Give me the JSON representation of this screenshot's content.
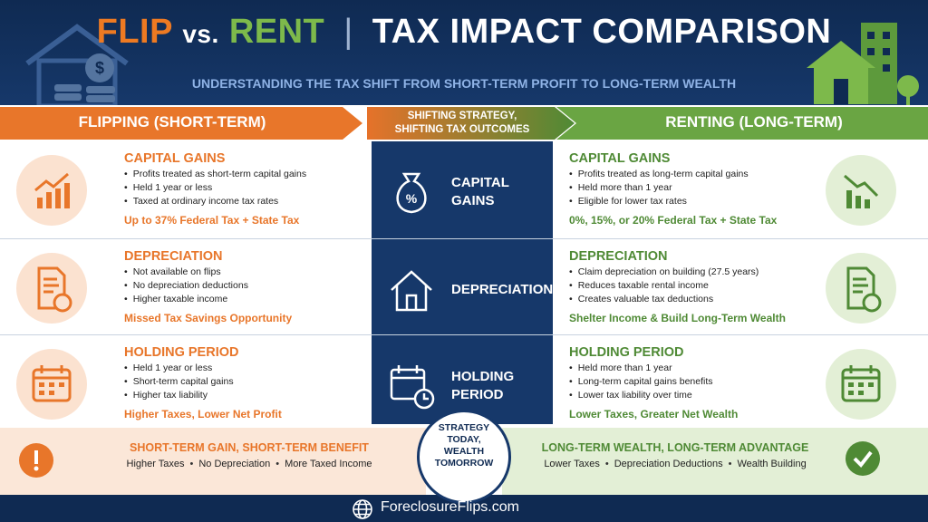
{
  "header": {
    "title_flip": "FLIP",
    "title_vs": "vs.",
    "title_rent": "RENT",
    "title_rest": "TAX IMPACT COMPARISON",
    "subtitle": "UNDERSTANDING THE TAX SHIFT FROM SHORT-TERM PROFIT TO LONG-TERM WEALTH"
  },
  "columns": {
    "left": "FLIPPING (SHORT-TERM)",
    "center": [
      "SHIFTING STRATEGY,",
      "SHIFTING TAX OUTCOMES"
    ],
    "right": "RENTING (LONG-TERM)"
  },
  "rows": [
    {
      "center": [
        "CAPITAL",
        "GAINS"
      ],
      "left": {
        "title": "CAPITAL GAINS",
        "bullets": [
          "Profits treated as short-term capital gains",
          "Held 1 year or less",
          "Taxed at ordinary income tax rates"
        ],
        "highlight": "Up to 37% Federal Tax + State Tax"
      },
      "right": {
        "title": "CAPITAL GAINS",
        "bullets": [
          "Profits treated as long-term capital gains",
          "Held more than 1 year",
          "Eligible for lower tax rates"
        ],
        "highlight": "0%, 15%, or 20% Federal Tax + State Tax"
      }
    },
    {
      "center": [
        "DEPRECIATION"
      ],
      "left": {
        "title": "DEPRECIATION",
        "bullets": [
          "Not available on flips",
          "No depreciation deductions",
          "Higher taxable income"
        ],
        "highlight": "Missed Tax Savings Opportunity"
      },
      "right": {
        "title": "DEPRECIATION",
        "bullets": [
          "Claim depreciation on building (27.5 years)",
          "Reduces taxable rental income",
          "Creates valuable tax deductions"
        ],
        "highlight": "Shelter Income & Build Long-Term Wealth"
      }
    },
    {
      "center": [
        "HOLDING",
        "PERIOD"
      ],
      "left": {
        "title": "HOLDING PERIOD",
        "bullets": [
          "Held 1 year or less",
          "Short-term capital gains",
          "Higher tax liability"
        ],
        "highlight": "Higher Taxes, Lower Net Profit"
      },
      "right": {
        "title": "HOLDING PERIOD",
        "bullets": [
          "Held more than 1 year",
          "Long-term capital gains benefits",
          "Lower tax liability over time"
        ],
        "highlight": "Lower Taxes, Greater Net Wealth"
      }
    }
  ],
  "footer": {
    "left": {
      "title": "SHORT-TERM GAIN, SHORT-TERM BENEFIT",
      "items": [
        "Higher Taxes",
        "No Depreciation",
        "More Taxed Income"
      ]
    },
    "badge": [
      "STRATEGY",
      "TODAY,",
      "WEALTH",
      "TOMORROW"
    ],
    "right": {
      "title": "LONG-TERM WEALTH, LONG-TERM ADVANTAGE",
      "items": [
        "Lower Taxes",
        "Depreciation Deductions",
        "Wealth Building"
      ]
    },
    "site": "ForeclosureFlips.com"
  }
}
